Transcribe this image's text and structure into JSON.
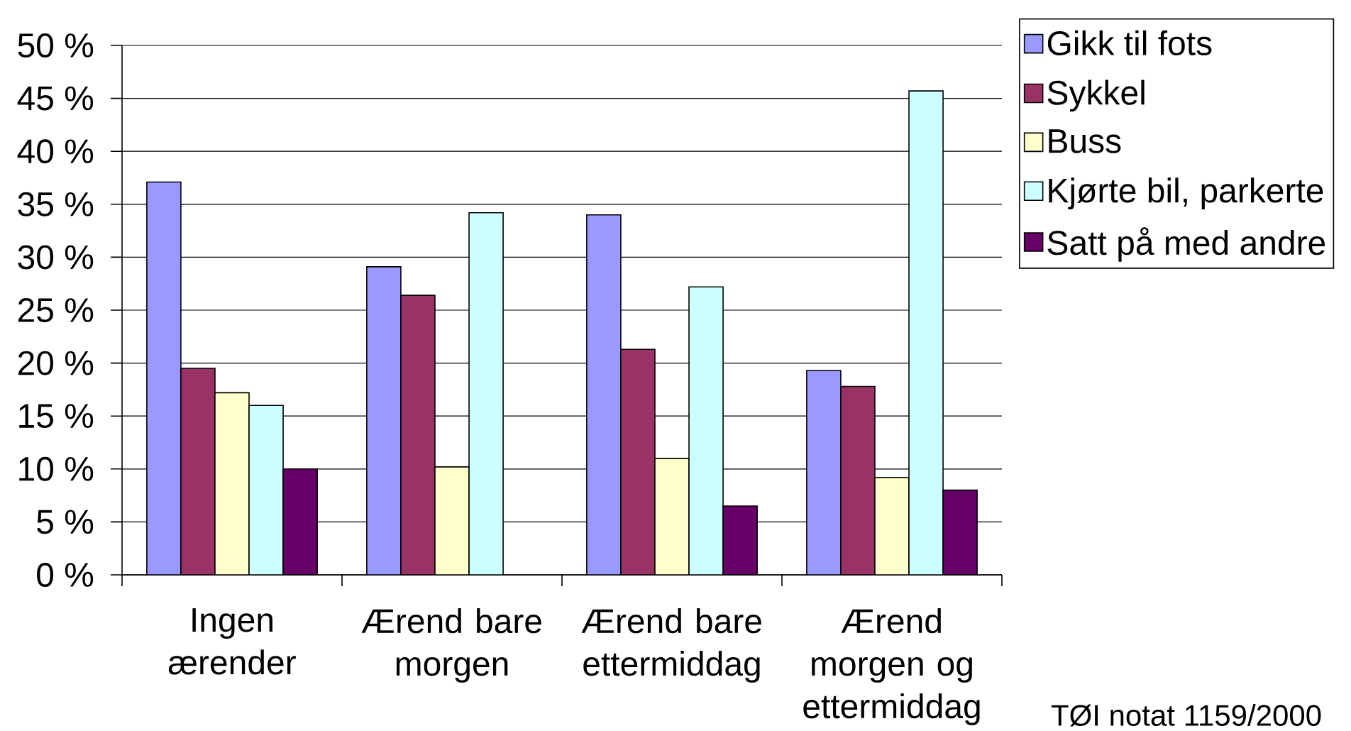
{
  "chart_data": {
    "type": "bar",
    "categories": [
      "Ingen ærender",
      "Ærend bare morgen",
      "Ærend bare ettermiddag",
      "Ærend morgen og ettermiddag"
    ],
    "series": [
      {
        "name": "Gikk til fots",
        "color": "#9999ff",
        "values": [
          37.1,
          29.1,
          34.0,
          19.3
        ]
      },
      {
        "name": "Sykkel",
        "color": "#993366",
        "values": [
          19.5,
          26.4,
          21.3,
          17.8
        ]
      },
      {
        "name": "Buss",
        "color": "#ffffcc",
        "values": [
          17.2,
          10.2,
          11.0,
          9.2
        ]
      },
      {
        "name": "Kjørte bil, parkerte",
        "color": "#ccffff",
        "values": [
          16.0,
          34.2,
          27.2,
          45.7
        ]
      },
      {
        "name": "Satt på med andre",
        "color": "#660066",
        "values": [
          10.0,
          null,
          6.5,
          8.0
        ]
      }
    ],
    "ylim": [
      0,
      50
    ],
    "yticks": [
      {
        "value": 0,
        "label": "0 %"
      },
      {
        "value": 5,
        "label": "5 %"
      },
      {
        "value": 10,
        "label": "10 %"
      },
      {
        "value": 15,
        "label": "15 %"
      },
      {
        "value": 20,
        "label": "20 %"
      },
      {
        "value": 25,
        "label": "25 %"
      },
      {
        "value": 30,
        "label": "30 %"
      },
      {
        "value": 35,
        "label": "35 %"
      },
      {
        "value": 40,
        "label": "40 %"
      },
      {
        "value": 45,
        "label": "45 %"
      },
      {
        "value": 50,
        "label": "50 %"
      }
    ],
    "grid": "y",
    "legend": "top right",
    "annotations": [
      "TØI notat 1159/2000"
    ]
  }
}
